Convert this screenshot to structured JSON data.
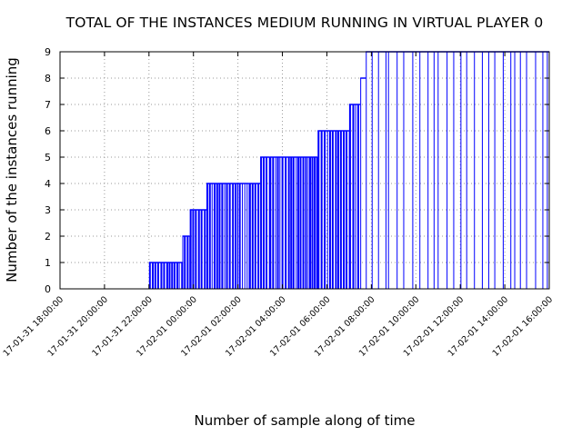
{
  "chart_data": {
    "type": "bar",
    "title": "TOTAL OF THE INSTANCES MEDIUM RUNNING IN VIRTUAL PLAYER 0",
    "xlabel": "Number of sample along of time",
    "ylabel": "Number of the instances running",
    "ylim": [
      0,
      9
    ],
    "yticks": [
      0,
      1,
      2,
      3,
      4,
      5,
      6,
      7,
      8,
      9
    ],
    "xlim": [
      "17-01-31 18:00:00",
      "17-02-01 16:00:00"
    ],
    "xticks": [
      "17-01-31 18:00:00",
      "17-01-31 20:00:00",
      "17-01-31 22:00:00",
      "17-02-01 00:00:00",
      "17-02-01 02:00:00",
      "17-02-01 04:00:00",
      "17-02-01 06:00:00",
      "17-02-01 08:00:00",
      "17-02-01 10:00:00",
      "17-02-01 12:00:00",
      "17-02-01 14:00:00",
      "17-02-01 16:00:00"
    ],
    "grid": true,
    "bar_color": "#0000ff",
    "series": [
      {
        "segments": [
          {
            "start": "17-01-31 22:00:00",
            "end": "17-01-31 23:30:00",
            "value": 1
          },
          {
            "start": "17-01-31 23:30:00",
            "end": "17-01-31 23:50:00",
            "value": 2
          },
          {
            "start": "17-01-31 23:50:00",
            "end": "17-02-01 00:35:00",
            "value": 3
          },
          {
            "start": "17-02-01 00:35:00",
            "end": "17-02-01 02:30:00",
            "value": 4
          },
          {
            "start": "17-02-01 02:30:00",
            "end": "17-02-01 03:00:00",
            "value": 4
          },
          {
            "start": "17-02-01 03:00:00",
            "end": "17-02-01 03:25:00",
            "value": 5
          },
          {
            "start": "17-02-01 03:25:00",
            "end": "17-02-01 05:35:00",
            "value": 5
          },
          {
            "start": "17-02-01 05:35:00",
            "end": "17-02-01 07:00:00",
            "value": 6
          },
          {
            "start": "17-02-01 07:00:00",
            "end": "17-02-01 07:30:00",
            "value": 7
          },
          {
            "start": "17-02-01 07:30:00",
            "end": "17-02-01 07:45:00",
            "value": 8
          },
          {
            "start": "17-02-01 07:45:00",
            "end": "17-02-01 08:45:00",
            "value": 9
          },
          {
            "start": "17-02-01 08:45:00",
            "end": "17-02-01 16:00:00",
            "value": 9
          }
        ]
      }
    ]
  }
}
